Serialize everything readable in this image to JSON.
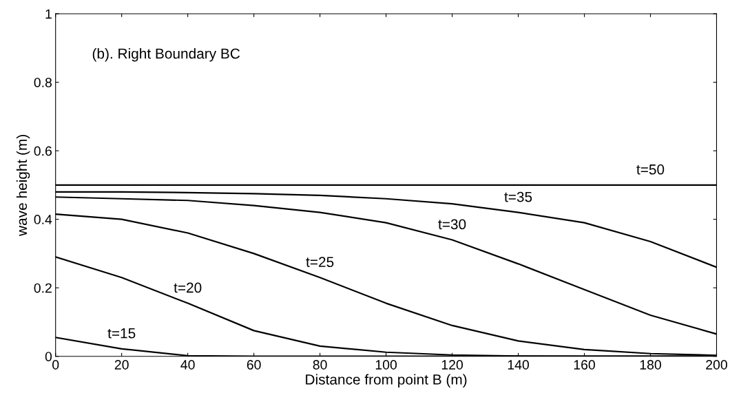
{
  "chart_data": {
    "type": "line",
    "xlabel": "Distance from point B (m)",
    "ylabel": "wave height (m)",
    "xlim": [
      0,
      200
    ],
    "ylim": [
      0,
      1
    ],
    "xticks": [
      0,
      20,
      40,
      60,
      80,
      100,
      120,
      140,
      160,
      180,
      200
    ],
    "yticks": [
      0,
      0.2,
      0.4,
      0.6,
      0.8,
      1
    ],
    "grid": false,
    "marker": "none",
    "line_style": "solid",
    "x": [
      0,
      20,
      40,
      60,
      80,
      100,
      120,
      140,
      160,
      180,
      200
    ],
    "series": [
      {
        "color": "#000000",
        "values": [
          0.055,
          0.022,
          0.002,
          0,
          0,
          0,
          0,
          0,
          0,
          0,
          0
        ]
      },
      {
        "color": "#000000",
        "values": [
          0.29,
          0.23,
          0.155,
          0.075,
          0.03,
          0.012,
          0.004,
          0.001,
          0,
          0,
          0
        ]
      },
      {
        "color": "#000000",
        "values": [
          0.415,
          0.4,
          0.36,
          0.3,
          0.23,
          0.155,
          0.09,
          0.045,
          0.02,
          0.008,
          0.003
        ]
      },
      {
        "color": "#000000",
        "values": [
          0.465,
          0.46,
          0.455,
          0.44,
          0.42,
          0.39,
          0.34,
          0.27,
          0.195,
          0.12,
          0.065
        ]
      },
      {
        "color": "#000000",
        "values": [
          0.48,
          0.48,
          0.478,
          0.475,
          0.47,
          0.46,
          0.445,
          0.42,
          0.39,
          0.335,
          0.26
        ]
      },
      {
        "color": "#000000",
        "values": [
          0.5,
          0.5,
          0.5,
          0.5,
          0.5,
          0.5,
          0.5,
          0.5,
          0.5,
          0.5,
          0.5
        ]
      }
    ],
    "annotations": [
      "(b). Right Boundary BC",
      {
        "text": "t=15",
        "x": 20,
        "y": 0.022
      },
      {
        "text": "t=20",
        "x": 40,
        "y": 0.155
      },
      {
        "text": "t=25",
        "x": 80,
        "y": 0.23
      },
      {
        "text": "t=30",
        "x": 120,
        "y": 0.34
      },
      {
        "text": "t=35",
        "x": 140,
        "y": 0.42
      },
      {
        "text": "t=50",
        "x": 180,
        "y": 0.5
      }
    ]
  }
}
